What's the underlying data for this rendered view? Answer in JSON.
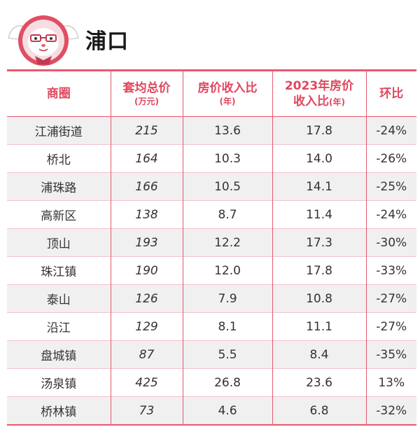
{
  "header": {
    "title": "浦口",
    "logo_icon": "rabbit-mascot-icon",
    "accent_color": "#e8596e"
  },
  "table": {
    "headers": {
      "area": "商圈",
      "price_main": "套均总价",
      "price_unit": "(万元)",
      "ratio_main": "房价收入比",
      "ratio_unit": "(年)",
      "ratio2023_line1": "2023年房价",
      "ratio2023_line2": "收入比",
      "ratio2023_unit": "(年)",
      "change": "环比"
    },
    "rows": [
      {
        "area": "江浦街道",
        "price": "215",
        "ratio": "13.6",
        "ratio2023": "17.8",
        "change": "-24%"
      },
      {
        "area": "桥北",
        "price": "164",
        "ratio": "10.3",
        "ratio2023": "14.0",
        "change": "-26%"
      },
      {
        "area": "浦珠路",
        "price": "166",
        "ratio": "10.5",
        "ratio2023": "14.1",
        "change": "-25%"
      },
      {
        "area": "高新区",
        "price": "138",
        "ratio": "8.7",
        "ratio2023": "11.4",
        "change": "-24%"
      },
      {
        "area": "顶山",
        "price": "193",
        "ratio": "12.2",
        "ratio2023": "17.3",
        "change": "-30%"
      },
      {
        "area": "珠江镇",
        "price": "190",
        "ratio": "12.0",
        "ratio2023": "17.8",
        "change": "-33%"
      },
      {
        "area": "泰山",
        "price": "126",
        "ratio": "7.9",
        "ratio2023": "10.8",
        "change": "-27%"
      },
      {
        "area": "沿江",
        "price": "129",
        "ratio": "8.1",
        "ratio2023": "11.1",
        "change": "-27%"
      },
      {
        "area": "盘城镇",
        "price": "87",
        "ratio": "5.5",
        "ratio2023": "8.4",
        "change": "-35%"
      },
      {
        "area": "汤泉镇",
        "price": "425",
        "ratio": "26.8",
        "ratio2023": "23.6",
        "change": "13%"
      },
      {
        "area": "桥林镇",
        "price": "73",
        "ratio": "4.6",
        "ratio2023": "6.8",
        "change": "-32%"
      }
    ]
  }
}
